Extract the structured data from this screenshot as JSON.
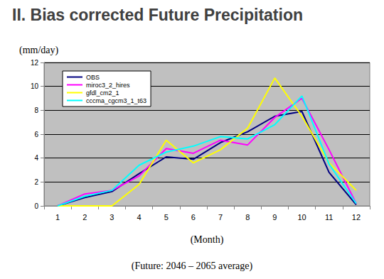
{
  "chart_data": {
    "type": "line",
    "title": "II. Bias corrected Future Precipitation",
    "x_label": "(Month)",
    "y_label": "(mm/day)",
    "annotations": [
      "(Future: 2046 – 2065 average)"
    ],
    "categories": [
      "1",
      "2",
      "3",
      "4",
      "5",
      "6",
      "7",
      "8",
      "9",
      "10",
      "11",
      "12"
    ],
    "series": [
      {
        "name": "OBS",
        "color": "#000080",
        "values": [
          0,
          0.7,
          1.2,
          2.7,
          4.1,
          3.9,
          5.3,
          6.2,
          7.5,
          7.9,
          2.8,
          0.1
        ]
      },
      {
        "name": "miroc3_2_hires",
        "color": "#ff00ff",
        "values": [
          0,
          1.0,
          1.3,
          2.5,
          4.8,
          4.4,
          5.5,
          5.1,
          7.4,
          9.0,
          4.7,
          0.2
        ]
      },
      {
        "name": "gfdl_cm2_1",
        "color": "#ffff00",
        "values": [
          0,
          0,
          0,
          1.8,
          5.5,
          3.6,
          4.7,
          6.5,
          10.7,
          7.5,
          3.6,
          1.3
        ]
      },
      {
        "name": "cccma_cgcm3_1_t63",
        "color": "#00ffff",
        "values": [
          0,
          0.8,
          1.3,
          3.4,
          4.5,
          5.0,
          5.8,
          5.6,
          6.8,
          9.2,
          3.5,
          0.2
        ]
      }
    ],
    "ylim": [
      0,
      12
    ],
    "yticks": [
      0,
      2,
      4,
      6,
      8,
      10,
      12
    ],
    "grid": true,
    "legend": "upper left"
  }
}
